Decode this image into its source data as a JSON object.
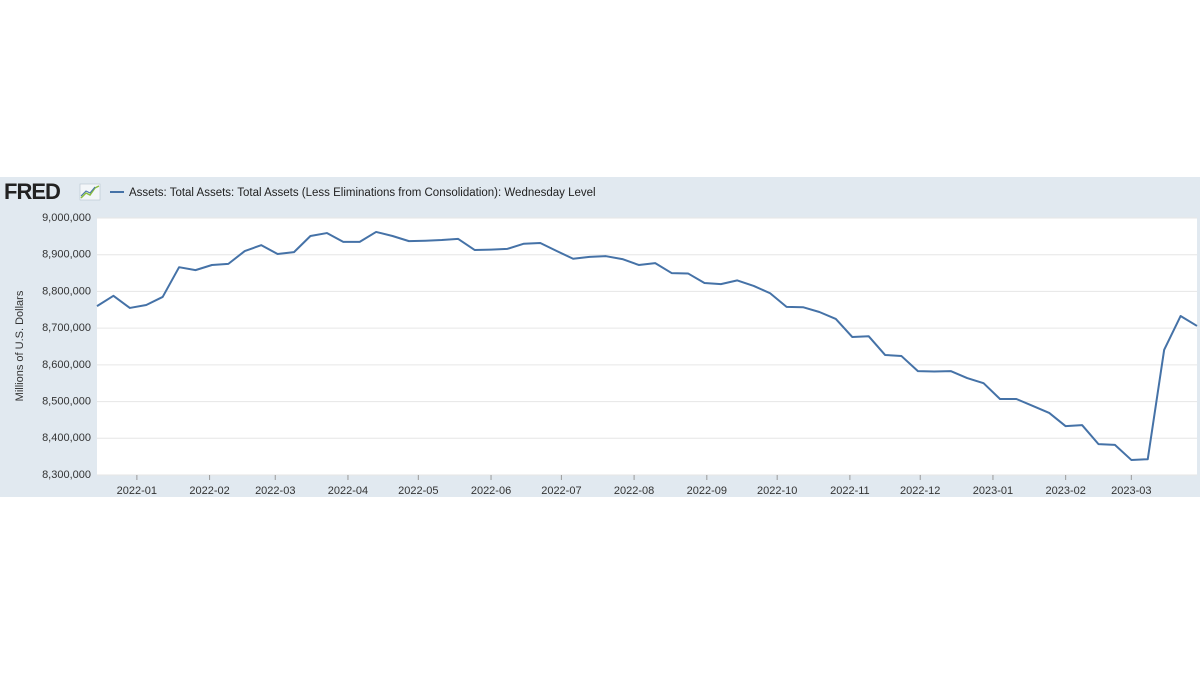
{
  "chart_data": {
    "type": "line",
    "logo": "FRED",
    "ylabel": "Millions of U.S. Dollars",
    "series": [
      {
        "name": "Assets: Total Assets: Total Assets (Less Eliminations from Consolidation): Wednesday Level",
        "color": "#4572a7",
        "values": [
          8760000,
          8788000,
          8755000,
          8763000,
          8785000,
          8866000,
          8858000,
          8872000,
          8875000,
          8910000,
          8926000,
          8902000,
          8907000,
          8951000,
          8959000,
          8935000,
          8935000,
          8962000,
          8951000,
          8937000,
          8938000,
          8940000,
          8943000,
          8913000,
          8914000,
          8916000,
          8930000,
          8932000,
          8910000,
          8889000,
          8894000,
          8896000,
          8888000,
          8872000,
          8877000,
          8850000,
          8849000,
          8823000,
          8820000,
          8830000,
          8815000,
          8795000,
          8758000,
          8757000,
          8744000,
          8725000,
          8676000,
          8678000,
          8627000,
          8624000,
          8583000,
          8582000,
          8583000,
          8564000,
          8550000,
          8507000,
          8507000,
          8488000,
          8469000,
          8433000,
          8436000,
          8384000,
          8382000,
          8341000,
          8343000,
          8641000,
          8733000,
          8706000
        ]
      }
    ],
    "ylim": [
      8300000,
      9000000
    ],
    "yticks": [
      {
        "value": 8300000,
        "label": "8,300,000"
      },
      {
        "value": 8400000,
        "label": "8,400,000"
      },
      {
        "value": 8500000,
        "label": "8,500,000"
      },
      {
        "value": 8600000,
        "label": "8,600,000"
      },
      {
        "value": 8700000,
        "label": "8,700,000"
      },
      {
        "value": 8800000,
        "label": "8,800,000"
      },
      {
        "value": 8900000,
        "label": "8,900,000"
      },
      {
        "value": 9000000,
        "label": "9,000,000"
      }
    ],
    "xticks": [
      "2022-01",
      "2022-02",
      "2022-03",
      "2022-04",
      "2022-05",
      "2022-06",
      "2022-07",
      "2022-08",
      "2022-09",
      "2022-10",
      "2022-11",
      "2022-12",
      "2023-01",
      "2023-02",
      "2023-03"
    ],
    "grid": true
  }
}
